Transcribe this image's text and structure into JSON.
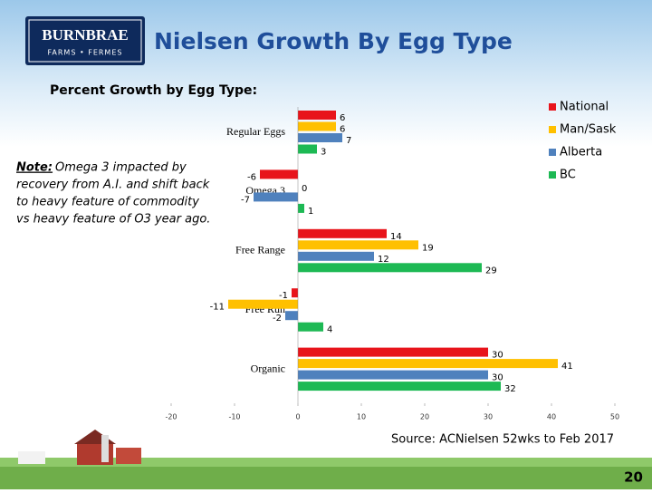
{
  "slide": {
    "logo_name": "BURNBRAE",
    "logo_sub": "FARMS • FERMES",
    "title": "Nielsen Growth By Egg Type",
    "note_label": "Note:",
    "note_lines": [
      "Omega 3 impacted by",
      "recovery from A.I. and shift back",
      "to heavy feature of  commodity",
      "vs heavy feature of O3 year ago."
    ],
    "source": "Source: ACNielsen 52wks to Feb 2017",
    "page_number": "20"
  },
  "chart_data": {
    "type": "hbar",
    "title": "Percent Growth by Egg Type:",
    "categories": [
      "Regular Eggs",
      "Omega 3",
      "Free Range",
      "Free Run",
      "Organic"
    ],
    "series": [
      {
        "name": "National",
        "color": "#e8141b",
        "values": [
          6,
          -6,
          14,
          -1,
          30
        ]
      },
      {
        "name": "Man/Sask",
        "color": "#ffc000",
        "values": [
          6,
          0,
          19,
          -11,
          41
        ]
      },
      {
        "name": "Alberta",
        "color": "#4f81bd",
        "values": [
          7,
          -7,
          12,
          -2,
          30
        ]
      },
      {
        "name": "BC",
        "color": "#1db954",
        "values": [
          3,
          1,
          29,
          4,
          32
        ]
      }
    ],
    "xlim": [
      -20,
      50
    ],
    "xticks": [
      -20,
      -10,
      0,
      10,
      20,
      30,
      40,
      50
    ],
    "legend": "upper right"
  }
}
